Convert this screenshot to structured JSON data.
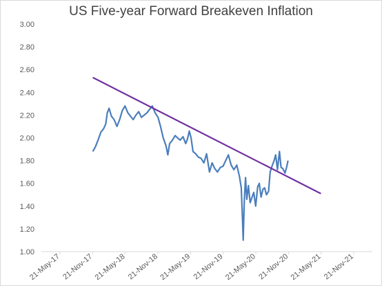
{
  "chart_data": {
    "type": "line",
    "title": "US Five-year Forward Breakeven Inflation",
    "xlabel": "",
    "ylabel": "",
    "ylim": [
      1.0,
      3.0
    ],
    "yticks": [
      "1.00",
      "1.20",
      "1.40",
      "1.60",
      "1.80",
      "2.00",
      "2.20",
      "2.40",
      "2.60",
      "2.80",
      "3.00"
    ],
    "xticks": [
      "21-May-17",
      "21-Nov-17",
      "21-May-18",
      "21-Nov-18",
      "21-May-19",
      "21-Nov-19",
      "21-May-20",
      "21-Nov-20",
      "21-May-21",
      "21-Nov-21"
    ],
    "grid": false,
    "legend": "none",
    "colors": {
      "series": "#4a7ebb",
      "trendline": "#7030a0",
      "axis": "#d9d9d9",
      "text": "#595959"
    },
    "series": [
      {
        "x": [
          "2017-11-21",
          "2017-12-05",
          "2017-12-20",
          "2018-01-05",
          "2018-01-20",
          "2018-02-01",
          "2018-02-10",
          "2018-02-20",
          "2018-03-05",
          "2018-03-20",
          "2018-04-05",
          "2018-04-20",
          "2018-05-05",
          "2018-05-20",
          "2018-06-05",
          "2018-06-20",
          "2018-07-05",
          "2018-07-20",
          "2018-08-05",
          "2018-08-20",
          "2018-09-05",
          "2018-09-20",
          "2018-10-05",
          "2018-10-20",
          "2018-11-05",
          "2018-11-21",
          "2018-12-05",
          "2018-12-20",
          "2019-01-05",
          "2019-01-15",
          "2019-01-25",
          "2019-02-10",
          "2019-02-25",
          "2019-03-10",
          "2019-03-25",
          "2019-04-10",
          "2019-04-25",
          "2019-05-05",
          "2019-05-15",
          "2019-05-25",
          "2019-06-05",
          "2019-06-20",
          "2019-07-05",
          "2019-07-20",
          "2019-08-05",
          "2019-08-20",
          "2019-09-05",
          "2019-09-20",
          "2019-10-05",
          "2019-10-20",
          "2019-11-05",
          "2019-11-20",
          "2019-12-05",
          "2019-12-20",
          "2020-01-05",
          "2020-01-20",
          "2020-02-05",
          "2020-02-20",
          "2020-03-01",
          "2020-03-08",
          "2020-03-12",
          "2020-03-18",
          "2020-03-25",
          "2020-04-01",
          "2020-04-10",
          "2020-04-20",
          "2020-05-01",
          "2020-05-10",
          "2020-05-21",
          "2020-06-01",
          "2020-06-10",
          "2020-06-20",
          "2020-07-01",
          "2020-07-10",
          "2020-07-20",
          "2020-08-01",
          "2020-08-10",
          "2020-08-20",
          "2020-09-01",
          "2020-09-10",
          "2020-09-20",
          "2020-10-01",
          "2020-10-10",
          "2020-10-20",
          "2020-11-01",
          "2020-11-10",
          "2020-11-18"
        ],
        "values": [
          1.88,
          1.92,
          1.98,
          2.05,
          2.08,
          2.12,
          2.22,
          2.26,
          2.19,
          2.16,
          2.1,
          2.16,
          2.24,
          2.28,
          2.22,
          2.19,
          2.16,
          2.2,
          2.23,
          2.18,
          2.2,
          2.22,
          2.25,
          2.28,
          2.22,
          2.18,
          2.1,
          2.0,
          1.93,
          1.85,
          1.95,
          1.98,
          2.02,
          2.0,
          1.98,
          2.01,
          1.95,
          1.99,
          2.06,
          2.0,
          1.88,
          1.86,
          1.83,
          1.82,
          1.78,
          1.86,
          1.7,
          1.78,
          1.73,
          1.7,
          1.74,
          1.75,
          1.8,
          1.85,
          1.76,
          1.72,
          1.76,
          1.66,
          1.56,
          1.28,
          1.1,
          1.45,
          1.65,
          1.46,
          1.58,
          1.43,
          1.48,
          1.52,
          1.4,
          1.57,
          1.6,
          1.48,
          1.55,
          1.56,
          1.5,
          1.53,
          1.7,
          1.75,
          1.8,
          1.85,
          1.72,
          1.88,
          1.74,
          1.73,
          1.69,
          1.74,
          1.8
        ]
      },
      {
        "x": [
          "2017-11-21",
          "2021-05-21"
        ],
        "values": [
          2.53,
          1.51
        ]
      }
    ]
  }
}
